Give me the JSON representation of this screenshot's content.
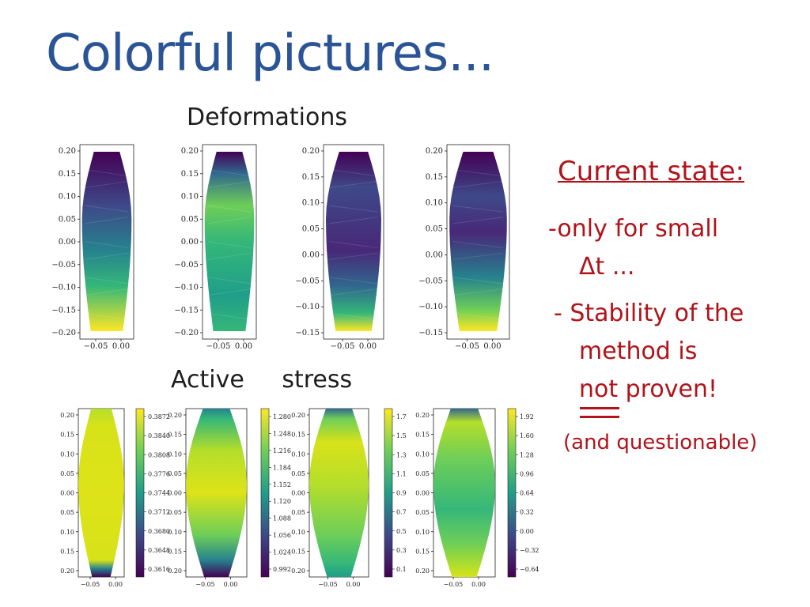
{
  "slide": {
    "title": "Colorful pictures...",
    "deformations_label": "Deformations",
    "stress_label": "Active stress"
  },
  "notes": {
    "heading": "Current state:",
    "line1a": "-only for small",
    "line1b": "Δt ...",
    "line2a": "- Stability of the",
    "line2b": "method is",
    "line2c": "not proven!",
    "line3": "(and questionable)"
  },
  "colormap": "viridis",
  "chart_data": [
    {
      "type": "heatmap",
      "panel": "deformation-1",
      "xticks": [
        "−0.05",
        "0.00"
      ],
      "yticks": [
        "0.20",
        "0.15",
        "0.10",
        "0.05",
        "0.00",
        "−0.05",
        "−0.10",
        "−0.15",
        "−0.20"
      ],
      "ylim": [
        -0.2,
        0.2
      ]
    },
    {
      "type": "heatmap",
      "panel": "deformation-2",
      "xticks": [
        "−0.05",
        "0.00"
      ],
      "yticks": [
        "0.20",
        "0.15",
        "0.10",
        "0.05",
        "0.00",
        "−0.05",
        "−0.10",
        "−0.15",
        "−0.20"
      ],
      "ylim": [
        -0.2,
        0.2
      ]
    },
    {
      "type": "heatmap",
      "panel": "deformation-3",
      "xticks": [
        "−0.05",
        "0.00"
      ],
      "yticks": [
        "0.20",
        "0.15",
        "0.10",
        "0.05",
        "0.00",
        "−0.05",
        "−0.10",
        "−0.15"
      ],
      "ylim": [
        -0.17,
        0.2
      ]
    },
    {
      "type": "heatmap",
      "panel": "deformation-4",
      "xticks": [
        "−0.05",
        "0.00"
      ],
      "yticks": [
        "0.20",
        "0.15",
        "0.10",
        "0.05",
        "0.00",
        "−0.05",
        "−0.10",
        "−0.15"
      ],
      "ylim": [
        -0.17,
        0.2
      ]
    },
    {
      "type": "heatmap",
      "panel": "stress-1",
      "xticks": [
        "−0.05",
        "0.00"
      ],
      "yticks": [
        "0.20",
        "0.15",
        "0.10",
        "0.05",
        "0.00",
        "0.05",
        "0.10",
        "0.15",
        "0.20"
      ],
      "colorbar": [
        "0.3872",
        "0.3840",
        "0.3808",
        "0.3776",
        "0.3744",
        "0.3712",
        "0.3680",
        "0.3648",
        "0.3616"
      ],
      "colorbar_range": [
        0.36,
        0.389
      ]
    },
    {
      "type": "heatmap",
      "panel": "stress-2",
      "xticks": [
        "−0.05",
        "0.00"
      ],
      "yticks": [
        "0.20",
        "0.15",
        "0.10",
        "0.05",
        "0.00",
        "0.05",
        "0.10",
        "0.15",
        "0.20"
      ],
      "colorbar": [
        "1.280",
        "1.248",
        "1.216",
        "1.184",
        "1.152",
        "1.120",
        "1.088",
        "1.056",
        "1.024",
        "0.992"
      ],
      "colorbar_range": [
        0.992,
        1.28
      ]
    },
    {
      "type": "heatmap",
      "panel": "stress-3",
      "xticks": [
        "−0.05",
        "0.00"
      ],
      "yticks": [
        "0.20",
        "0.15",
        "0.10",
        "0.05",
        "0.00",
        "0.05",
        "0.10",
        "0.15",
        "0.20"
      ],
      "colorbar": [
        "1.7",
        "1.5",
        "1.3",
        "1.1",
        "0.9",
        "0.7",
        "0.5",
        "0.3",
        "0.1"
      ],
      "colorbar_range": [
        0.1,
        1.8
      ]
    },
    {
      "type": "heatmap",
      "panel": "stress-4",
      "xticks": [
        "−0.05",
        "0.00"
      ],
      "yticks": [
        "0.20",
        "0.15",
        "0.10",
        "0.05",
        "0.00",
        "0.05",
        "0.10",
        "0.15",
        "0.20"
      ],
      "colorbar": [
        "1.92",
        "1.60",
        "1.28",
        "0.96",
        "0.64",
        "0.32",
        "0.00",
        "−0.32",
        "−0.64"
      ],
      "colorbar_range": [
        -0.75,
        2.0
      ]
    }
  ]
}
